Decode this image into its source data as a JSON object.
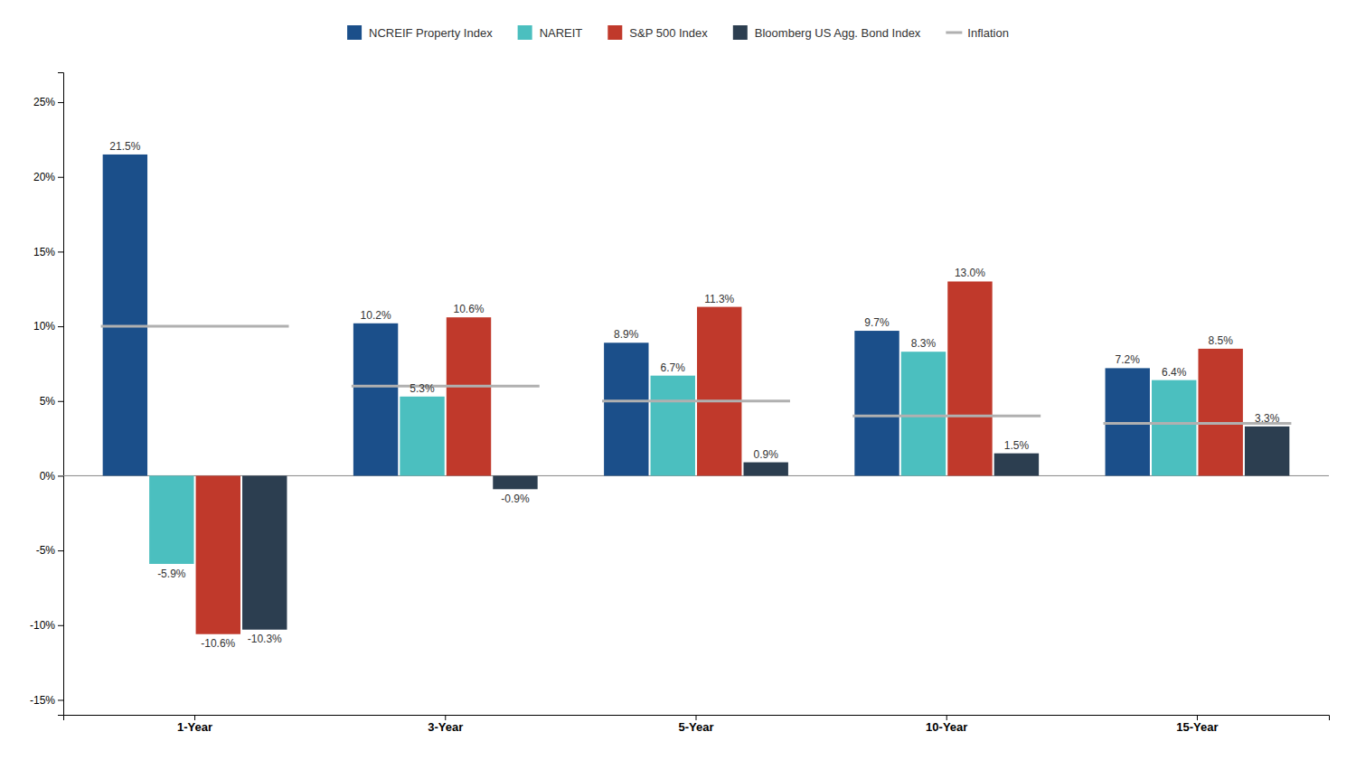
{
  "chart_data": {
    "type": "bar",
    "categories": [
      "1-Year",
      "3-Year",
      "5-Year",
      "10-Year",
      "15-Year"
    ],
    "series": [
      {
        "name": "NCREIF Property Index",
        "color": "#1b4f8a",
        "values": [
          21.5,
          10.2,
          8.9,
          9.7,
          7.2
        ],
        "value_labels": [
          "21.5%",
          "10.2%",
          "8.9%",
          "9.7%",
          "7.2%"
        ]
      },
      {
        "name": "NAREIT",
        "color": "#4bbfbf",
        "values": [
          -5.9,
          5.3,
          6.7,
          8.3,
          6.4
        ],
        "value_labels": [
          "-5.9%",
          "5.3%",
          "6.7%",
          "8.3%",
          "6.4%"
        ]
      },
      {
        "name": "S&P 500 Index",
        "color": "#c0392b",
        "values": [
          -10.6,
          10.6,
          11.3,
          13.0,
          8.5
        ],
        "value_labels": [
          "-10.6%",
          "10.6%",
          "11.3%",
          "13.0%",
          "8.5%"
        ]
      },
      {
        "name": "Bloomberg US Agg. Bond Index",
        "color": "#2c3e50",
        "values": [
          -10.3,
          -0.9,
          0.9,
          1.5,
          3.3
        ],
        "value_labels": [
          "-10.3%",
          "-0.9%",
          "0.9%",
          "1.5%",
          "3.3%"
        ]
      },
      {
        "name": "Inflation",
        "type": "line",
        "color": "#b0b0b0",
        "values": [
          10.0,
          6.0,
          5.0,
          4.0,
          3.5
        ]
      }
    ],
    "ylim": [
      -16,
      27
    ],
    "yticks": [
      {
        "value": -15,
        "label": "-15%"
      },
      {
        "value": -10,
        "label": "-10%"
      },
      {
        "value": -5,
        "label": "-5%"
      },
      {
        "value": 0,
        "label": "0%"
      },
      {
        "value": 5,
        "label": "5%"
      },
      {
        "value": 10,
        "label": "10%"
      },
      {
        "value": 15,
        "label": "15%"
      },
      {
        "value": 20,
        "label": "20%"
      },
      {
        "value": 25,
        "label": "25%"
      }
    ],
    "grid": false,
    "legend": "top",
    "data_labels": true
  }
}
